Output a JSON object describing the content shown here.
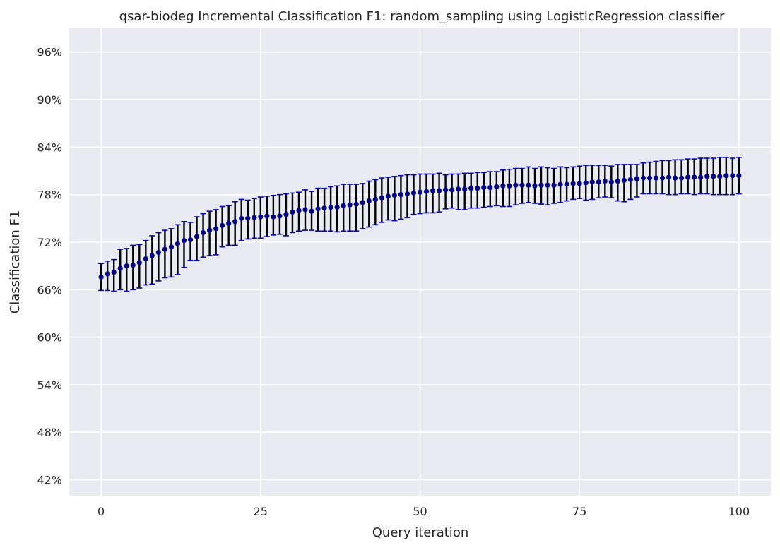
{
  "chart_data": {
    "type": "scatter",
    "title": "qsar-biodeg Incremental Classification F1: random_sampling using LogisticRegression classifier",
    "xlabel": "Query iteration",
    "ylabel": "Classification F1",
    "xlim": [
      -5,
      105
    ],
    "ylim": [
      0.4,
      0.99
    ],
    "xticks": [
      0,
      25,
      50,
      75,
      100
    ],
    "xtick_labels": [
      "0",
      "25",
      "50",
      "75",
      "100"
    ],
    "yticks": [
      0.42,
      0.48,
      0.54,
      0.6,
      0.66,
      0.72,
      0.78,
      0.84,
      0.9,
      0.96
    ],
    "ytick_labels": [
      "42%",
      "48%",
      "54%",
      "60%",
      "66%",
      "72%",
      "78%",
      "84%",
      "90%",
      "96%"
    ],
    "grid": true,
    "background": "#eaeaf2",
    "grid_color": "#ffffff",
    "marker_color": "#00008b",
    "errorbar_color": "#000000",
    "errorcap_color": "#0000cd",
    "series": [
      {
        "x": [
          0,
          1,
          2,
          3,
          4,
          5,
          6,
          7,
          8,
          9,
          10,
          11,
          12,
          13,
          14,
          15,
          16,
          17,
          18,
          19,
          20,
          21,
          22,
          23,
          24,
          25,
          26,
          27,
          28,
          29,
          30,
          31,
          32,
          33,
          34,
          35,
          36,
          37,
          38,
          39,
          40,
          41,
          42,
          43,
          44,
          45,
          46,
          47,
          48,
          49,
          50,
          51,
          52,
          53,
          54,
          55,
          56,
          57,
          58,
          59,
          60,
          61,
          62,
          63,
          64,
          65,
          66,
          67,
          68,
          69,
          70,
          71,
          72,
          73,
          74,
          75,
          76,
          77,
          78,
          79,
          80,
          81,
          82,
          83,
          84,
          85,
          86,
          87,
          88,
          89,
          90,
          91,
          92,
          93,
          94,
          95,
          96,
          97,
          98,
          99,
          100
        ],
        "y": [
          0.676,
          0.68,
          0.682,
          0.687,
          0.69,
          0.691,
          0.694,
          0.699,
          0.703,
          0.707,
          0.711,
          0.714,
          0.718,
          0.722,
          0.723,
          0.727,
          0.732,
          0.735,
          0.737,
          0.741,
          0.744,
          0.746,
          0.75,
          0.75,
          0.751,
          0.752,
          0.753,
          0.752,
          0.753,
          0.755,
          0.758,
          0.76,
          0.761,
          0.759,
          0.762,
          0.763,
          0.764,
          0.764,
          0.766,
          0.767,
          0.768,
          0.77,
          0.772,
          0.774,
          0.776,
          0.778,
          0.779,
          0.78,
          0.781,
          0.782,
          0.783,
          0.784,
          0.785,
          0.785,
          0.786,
          0.786,
          0.787,
          0.787,
          0.788,
          0.788,
          0.789,
          0.789,
          0.79,
          0.791,
          0.791,
          0.792,
          0.792,
          0.792,
          0.791,
          0.792,
          0.792,
          0.792,
          0.793,
          0.793,
          0.794,
          0.794,
          0.795,
          0.796,
          0.796,
          0.797,
          0.796,
          0.797,
          0.798,
          0.799,
          0.8,
          0.801,
          0.801,
          0.801,
          0.801,
          0.802,
          0.801,
          0.801,
          0.802,
          0.802,
          0.802,
          0.803,
          0.803,
          0.803,
          0.804,
          0.804,
          0.804
        ],
        "y_lower": [
          0.659,
          0.659,
          0.658,
          0.66,
          0.658,
          0.66,
          0.662,
          0.666,
          0.667,
          0.671,
          0.675,
          0.676,
          0.679,
          0.688,
          0.697,
          0.697,
          0.701,
          0.703,
          0.704,
          0.714,
          0.716,
          0.716,
          0.722,
          0.724,
          0.725,
          0.725,
          0.727,
          0.729,
          0.73,
          0.728,
          0.732,
          0.734,
          0.735,
          0.735,
          0.734,
          0.734,
          0.734,
          0.733,
          0.734,
          0.734,
          0.734,
          0.737,
          0.739,
          0.742,
          0.745,
          0.748,
          0.747,
          0.749,
          0.751,
          0.755,
          0.756,
          0.757,
          0.757,
          0.758,
          0.762,
          0.763,
          0.761,
          0.761,
          0.763,
          0.763,
          0.764,
          0.765,
          0.766,
          0.765,
          0.765,
          0.767,
          0.769,
          0.77,
          0.769,
          0.768,
          0.767,
          0.769,
          0.77,
          0.772,
          0.774,
          0.775,
          0.773,
          0.774,
          0.776,
          0.777,
          0.776,
          0.772,
          0.771,
          0.774,
          0.777,
          0.781,
          0.781,
          0.781,
          0.781,
          0.78,
          0.78,
          0.781,
          0.781,
          0.78,
          0.781,
          0.781,
          0.78,
          0.78,
          0.78,
          0.78,
          0.781
        ],
        "y_upper": [
          0.693,
          0.696,
          0.698,
          0.711,
          0.712,
          0.716,
          0.717,
          0.722,
          0.728,
          0.732,
          0.735,
          0.737,
          0.742,
          0.746,
          0.745,
          0.752,
          0.756,
          0.759,
          0.761,
          0.765,
          0.766,
          0.771,
          0.774,
          0.773,
          0.775,
          0.777,
          0.778,
          0.779,
          0.78,
          0.781,
          0.782,
          0.783,
          0.786,
          0.784,
          0.788,
          0.788,
          0.79,
          0.791,
          0.793,
          0.793,
          0.793,
          0.794,
          0.797,
          0.799,
          0.801,
          0.802,
          0.803,
          0.804,
          0.805,
          0.805,
          0.806,
          0.806,
          0.806,
          0.807,
          0.805,
          0.806,
          0.806,
          0.807,
          0.807,
          0.808,
          0.808,
          0.809,
          0.809,
          0.811,
          0.812,
          0.813,
          0.813,
          0.815,
          0.813,
          0.815,
          0.814,
          0.813,
          0.815,
          0.814,
          0.815,
          0.816,
          0.817,
          0.817,
          0.817,
          0.817,
          0.816,
          0.818,
          0.818,
          0.818,
          0.818,
          0.82,
          0.821,
          0.822,
          0.823,
          0.823,
          0.824,
          0.824,
          0.825,
          0.825,
          0.826,
          0.826,
          0.826,
          0.827,
          0.827,
          0.826,
          0.827
        ]
      }
    ]
  }
}
